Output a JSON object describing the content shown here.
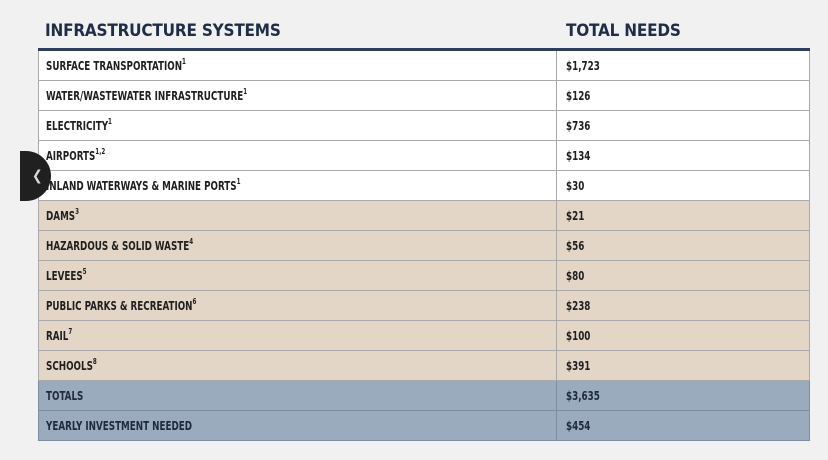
{
  "header": {
    "col1": "INFRASTRUCTURE SYSTEMS",
    "col2": "TOTAL NEEDS"
  },
  "rows": [
    {
      "label": "SURFACE TRANSPORTATION",
      "sup": "1",
      "value": "$1,723",
      "style": "white"
    },
    {
      "label": "WATER/WASTEWATER INFRASTRUCTURE",
      "sup": "1",
      "value": "$126",
      "style": "white"
    },
    {
      "label": "ELECTRICITY",
      "sup": "1",
      "value": "$736",
      "style": "white"
    },
    {
      "label": "AIRPORTS",
      "sup": "1,2",
      "value": "$134",
      "style": "white"
    },
    {
      "label": "INLAND WATERWAYS & MARINE PORTS",
      "sup": "1",
      "value": "$30",
      "style": "white"
    },
    {
      "label": "DAMS",
      "sup": "3",
      "value": "$21",
      "style": "tan"
    },
    {
      "label": "HAZARDOUS & SOLID WASTE",
      "sup": "4",
      "value": "$56",
      "style": "tan"
    },
    {
      "label": "LEVEES",
      "sup": "5",
      "value": "$80",
      "style": "tan"
    },
    {
      "label": "PUBLIC PARKS & RECREATION",
      "sup": "6",
      "value": "$238",
      "style": "tan"
    },
    {
      "label": "RAIL",
      "sup": "7",
      "value": "$100",
      "style": "tan"
    },
    {
      "label": "SCHOOLS",
      "sup": "8",
      "value": "$391",
      "style": "tan"
    },
    {
      "label": "TOTALS",
      "sup": "",
      "value": "$3,635",
      "style": "blue"
    },
    {
      "label": "YEARLY INVESTMENT NEEDED",
      "sup": "",
      "value": "$454",
      "style": "blue"
    }
  ],
  "nav": {
    "icon": "chevron-left-icon"
  }
}
